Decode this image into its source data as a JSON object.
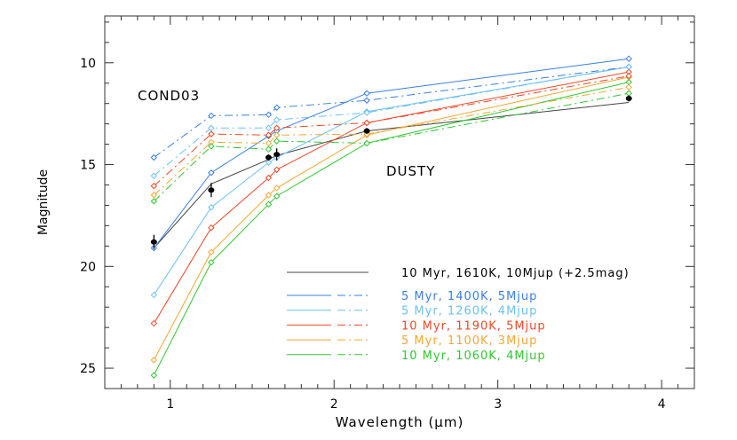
{
  "chart_data": {
    "type": "line",
    "title": "",
    "xlabel": "Wavelength (μm)",
    "ylabel": "Magnitude",
    "xlim": [
      0.6,
      4.2
    ],
    "ylim": [
      26,
      7.7
    ],
    "y_reversed": true,
    "grid": false,
    "xticks": [
      "1",
      "2",
      "3",
      "4"
    ],
    "yticks": [
      "10",
      "15",
      "20",
      "25"
    ],
    "annotations": [
      "COND03",
      "DUSTY"
    ],
    "x": [
      0.9,
      1.25,
      1.6,
      1.65,
      2.2,
      3.8
    ],
    "legend_position": "bottom-right",
    "series": [
      {
        "name": "10 Myr, 1610K, 10Mjup (+2.5mag)",
        "color": "#444444",
        "style": "solid",
        "markers": false,
        "values": [
          19.1,
          15.95,
          14.75,
          14.55,
          13.35,
          11.95
        ]
      },
      {
        "name": "5 Myr, 1400K, 5Mjup",
        "color": "#3a7fe0",
        "style": "solid",
        "model": "DUSTY",
        "values": [
          19.1,
          15.4,
          13.6,
          13.35,
          11.5,
          9.8
        ]
      },
      {
        "name": "5 Myr, 1260K, 4Mjup",
        "color": "#6cc0f5",
        "style": "solid",
        "model": "DUSTY",
        "values": [
          21.4,
          17.1,
          14.9,
          14.65,
          12.4,
          10.2
        ]
      },
      {
        "name": "10 Myr, 1190K, 5Mjup",
        "color": "#f04828",
        "style": "solid",
        "model": "DUSTY",
        "values": [
          22.8,
          18.1,
          15.65,
          15.25,
          12.95,
          10.45
        ]
      },
      {
        "name": "5 Myr, 1100K, 3Mjup",
        "color": "#f0a830",
        "style": "solid",
        "model": "DUSTY",
        "values": [
          24.6,
          19.3,
          16.5,
          16.15,
          13.55,
          10.7
        ]
      },
      {
        "name": "10 Myr, 1060K, 4Mjup",
        "color": "#30c830",
        "style": "solid",
        "model": "DUSTY",
        "values": [
          25.35,
          19.8,
          16.95,
          16.55,
          13.95,
          10.95
        ]
      },
      {
        "name": "5 Myr, 1400K, 5Mjup",
        "color": "#3a7fe0",
        "style": "dashdot",
        "model": "COND03",
        "values": [
          14.65,
          12.6,
          12.55,
          12.2,
          11.85,
          10.2
        ]
      },
      {
        "name": "5 Myr, 1260K, 4Mjup",
        "color": "#6cc0f5",
        "style": "dashdot",
        "model": "COND03",
        "values": [
          15.55,
          13.2,
          13.2,
          12.8,
          12.45,
          10.2
        ]
      },
      {
        "name": "10 Myr, 1190K, 5Mjup",
        "color": "#f04828",
        "style": "dashdot",
        "model": "COND03",
        "values": [
          16.05,
          13.5,
          13.55,
          13.2,
          12.95,
          10.65
        ]
      },
      {
        "name": "5 Myr, 1100K, 3Mjup",
        "color": "#f0a830",
        "style": "dashdot",
        "model": "COND03",
        "values": [
          16.5,
          13.9,
          13.95,
          13.55,
          13.5,
          11.2
        ]
      },
      {
        "name": "10 Myr, 1060K, 4Mjup",
        "color": "#30c830",
        "style": "dashdot",
        "model": "COND03",
        "values": [
          16.8,
          14.1,
          14.25,
          13.85,
          13.95,
          11.5
        ]
      }
    ],
    "observed": {
      "color": "#000000",
      "values": [
        18.8,
        16.25,
        14.65,
        14.5,
        13.35,
        11.75
      ],
      "errors": [
        0.35,
        0.35,
        0.15,
        0.3,
        0.15,
        0.15
      ]
    },
    "legend": [
      {
        "label": "10 Myr, 1610K, 10Mjup (+2.5mag)",
        "color": "#444444",
        "text_color": "#000000"
      },
      {
        "label": "5 Myr, 1400K, 5Mjup",
        "color": "#3a7fe0",
        "text_color": "#3a7fe0"
      },
      {
        "label": "5 Myr, 1260K, 4Mjup",
        "color": "#6cc0f5",
        "text_color": "#6cc0f5"
      },
      {
        "label": "10 Myr, 1190K, 5Mjup",
        "color": "#f04828",
        "text_color": "#f04828"
      },
      {
        "label": "5 Myr, 1100K, 3Mjup",
        "color": "#f0a830",
        "text_color": "#f0a830"
      },
      {
        "label": "10 Myr, 1060K, 4Mjup",
        "color": "#30c830",
        "text_color": "#30c830"
      }
    ]
  }
}
